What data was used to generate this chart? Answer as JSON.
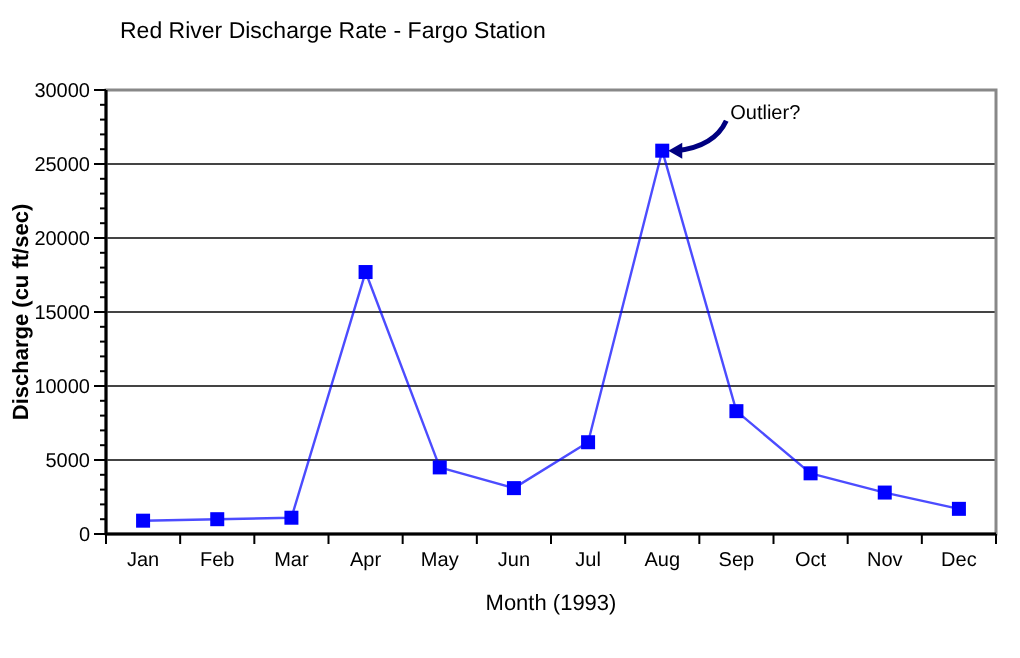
{
  "chart_data": {
    "type": "line",
    "title": "Red River Discharge Rate - Fargo Station",
    "xlabel": "Month (1993)",
    "ylabel": "Discharge (cu ft/sec)",
    "categories": [
      "Jan",
      "Feb",
      "Mar",
      "Apr",
      "May",
      "Jun",
      "Jul",
      "Aug",
      "Sep",
      "Oct",
      "Nov",
      "Dec"
    ],
    "series": [
      {
        "color": "#0000ff",
        "values": [
          900,
          1000,
          1100,
          17700,
          4500,
          3100,
          6200,
          25900,
          8300,
          4100,
          2800,
          1700
        ]
      }
    ],
    "ylim": [
      0,
      30000
    ],
    "yticks": [
      0,
      5000,
      10000,
      15000,
      20000,
      25000,
      30000
    ],
    "grid": "y",
    "marker": "square",
    "line_style": "solid",
    "annotations": [
      {
        "text": "Outlier?",
        "x": "Aug",
        "y": 25900
      }
    ]
  }
}
